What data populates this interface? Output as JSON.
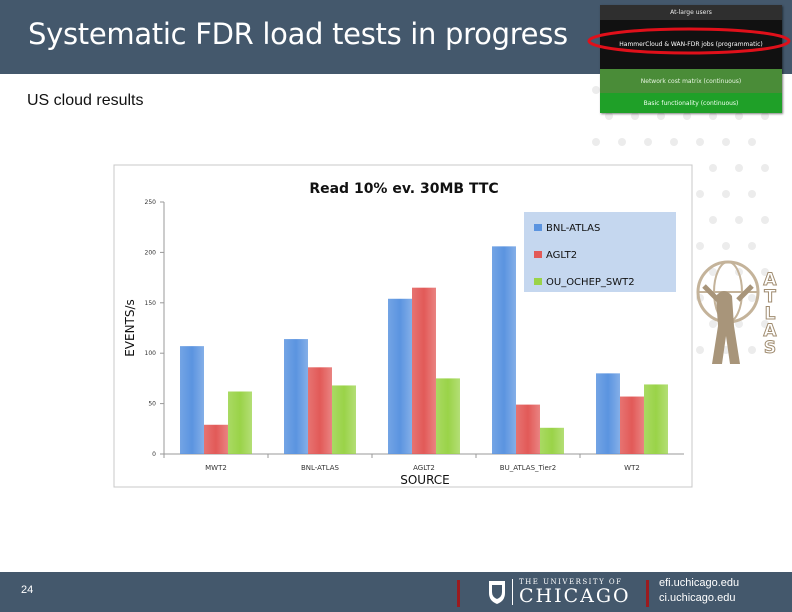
{
  "slide": {
    "title": "Systematic FDR load tests in progress",
    "subtitle": "US cloud results",
    "page_number": "24"
  },
  "pyramid": {
    "levels": [
      "At-large users",
      "HammerCloud & WAN-FDR jobs (programmatic)",
      "Network cost matrix (continuous)",
      "Basic functionality (continuous)"
    ],
    "highlight_color": "#e0101a"
  },
  "atlas_logo": {
    "letters": [
      "A",
      "T",
      "L",
      "A",
      "S"
    ]
  },
  "footer": {
    "university_line1": "THE UNIVERSITY OF",
    "university_line2": "CHICAGO",
    "url_1": "efi.uchicago.edu",
    "url_2": "ci.uchicago.edu"
  },
  "chart_data": {
    "type": "bar",
    "title": "Read 10% ev. 30MB TTC",
    "xlabel": "SOURCE",
    "ylabel": "EVENTS/s",
    "categories": [
      "MWT2",
      "BNL-ATLAS",
      "AGLT2",
      "BU_ATLAS_Tier2",
      "WT2"
    ],
    "ylim": [
      0,
      250
    ],
    "yticks": [
      "0",
      "50",
      "100",
      "150",
      "200",
      "250"
    ],
    "grid": false,
    "legend_position": "top-right",
    "series": [
      {
        "name": "BNL-ATLAS",
        "color": "#5b94e0",
        "values": [
          107,
          114,
          154,
          206,
          80
        ]
      },
      {
        "name": "AGLT2",
        "color": "#e25a58",
        "values": [
          29,
          86,
          165,
          49,
          57
        ]
      },
      {
        "name": "OU_OCHEP_SWT2",
        "color": "#9ad348",
        "values": [
          62,
          68,
          75,
          26,
          69
        ]
      }
    ]
  }
}
